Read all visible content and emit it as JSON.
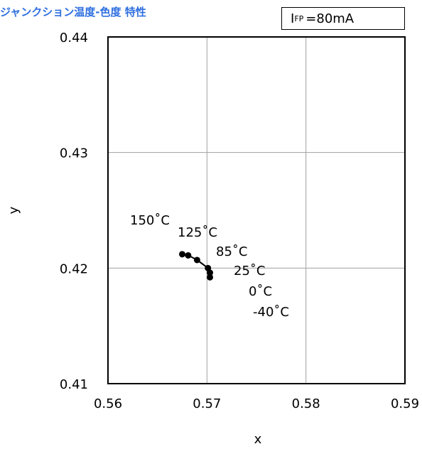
{
  "title": "ジャンクション温度-色度 特性",
  "condition": {
    "symbol": "I",
    "subscript": "FP",
    "value": "=80mA"
  },
  "chart_data": {
    "type": "scatter",
    "xlabel": "x",
    "ylabel": "y",
    "xlim": [
      0.56,
      0.59
    ],
    "ylim": [
      0.41,
      0.44
    ],
    "x_ticks": [
      "0.56",
      "0.57",
      "0.58",
      "0.59"
    ],
    "y_ticks": [
      "0.41",
      "0.42",
      "0.43",
      "0.44"
    ],
    "grid": true,
    "series": [
      {
        "connected": true,
        "points": [
          {
            "label": "150˚C",
            "x": 0.5675,
            "y": 0.4212
          },
          {
            "label": "125˚C",
            "x": 0.5681,
            "y": 0.4211
          },
          {
            "label": "85˚C",
            "x": 0.569,
            "y": 0.4207
          },
          {
            "label": "25˚C",
            "x": 0.5701,
            "y": 0.42
          },
          {
            "label": "0˚C",
            "x": 0.5703,
            "y": 0.4196
          },
          {
            "label": "-40˚C",
            "x": 0.5703,
            "y": 0.4192
          }
        ]
      }
    ]
  }
}
